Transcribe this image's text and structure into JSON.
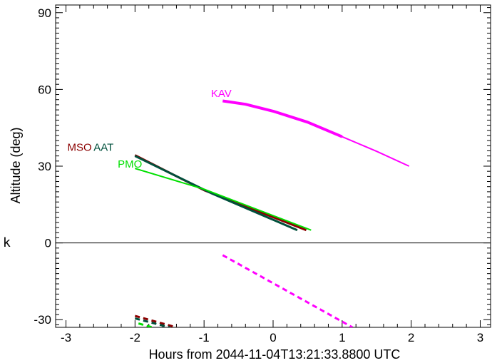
{
  "chart_data": {
    "type": "line",
    "title": "",
    "xlabel": "Hours from 2044-11-04T13:21:33.8800 UTC",
    "ylabel": "Altitude (deg)",
    "xlim": [
      -3.15,
      3.15
    ],
    "ylim": [
      -33,
      93
    ],
    "x_ticks": [
      -3,
      -2,
      -1,
      0,
      1,
      2,
      3
    ],
    "y_ticks": [
      -30,
      0,
      30,
      60,
      90
    ],
    "grid": false,
    "zero_line": 0,
    "stray_label": "k",
    "series": [
      {
        "name": "KAV",
        "color": "#ff00ff",
        "label_pos": [
          -0.9,
          57
        ],
        "segments": [
          {
            "style": "thick",
            "points": [
              [
                -0.73,
                55.5
              ],
              [
                -0.4,
                54.2
              ],
              [
                0,
                51.5
              ],
              [
                0.5,
                47.2
              ],
              [
                1.0,
                41.5
              ]
            ]
          },
          {
            "style": "thin",
            "points": [
              [
                1.0,
                41.5
              ],
              [
                1.5,
                35.8
              ],
              [
                1.97,
                30.0
              ]
            ]
          },
          {
            "style": "dashed",
            "points": [
              [
                -0.73,
                -4.8
              ],
              [
                1.15,
                -33
              ]
            ]
          }
        ]
      },
      {
        "name": "MSO",
        "color": "#8b0000",
        "label_pos": [
          -2.98,
          36
        ],
        "segments": [
          {
            "style": "medium",
            "points": [
              [
                -2.0,
                34.3
              ],
              [
                -1.0,
                20.6
              ],
              [
                0.48,
                5.0
              ]
            ]
          },
          {
            "style": "dashed",
            "points": [
              [
                -2.0,
                -28.5
              ],
              [
                -1.4,
                -33
              ]
            ]
          }
        ]
      },
      {
        "name": "AAT",
        "color": "#00503c",
        "label_pos": [
          -2.6,
          36
        ],
        "segments": [
          {
            "style": "medium",
            "points": [
              [
                -2.0,
                34.0
              ],
              [
                -0.9,
                19.5
              ],
              [
                0.35,
                5.0
              ]
            ]
          },
          {
            "style": "dashed",
            "points": [
              [
                -2.0,
                -29.5
              ],
              [
                -1.5,
                -33
              ]
            ]
          }
        ]
      },
      {
        "name": "PMO",
        "color": "#00e000",
        "label_pos": [
          -2.25,
          29.5
        ],
        "segments": [
          {
            "style": "thin",
            "points": [
              [
                -2.0,
                29.1
              ],
              [
                -1.0,
                21.0
              ],
              [
                0.55,
                5.0
              ]
            ]
          },
          {
            "style": "dashed",
            "points": [
              [
                -1.95,
                -31.5
              ],
              [
                -1.75,
                -33
              ]
            ]
          }
        ]
      }
    ]
  }
}
